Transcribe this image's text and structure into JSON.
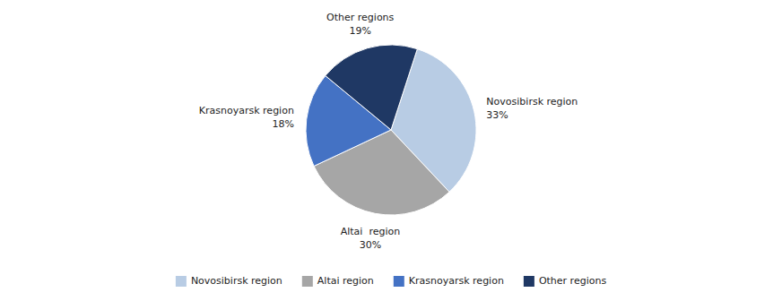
{
  "chart_data": {
    "type": "pie",
    "categories": [
      "Novosibirsk region",
      "Altai region",
      "Krasnoyarsk region",
      "Other regions"
    ],
    "values": [
      33,
      30,
      18,
      19
    ],
    "colors": [
      "#b8cce4",
      "#a6a6a6",
      "#4472c4",
      "#1f3864"
    ],
    "annotations": [
      "Novosibirsk region",
      "Altai  region",
      "Krasnoyarsk region",
      "Other regions"
    ],
    "data_labels": true,
    "value_labels": [
      "33%",
      "30%",
      "18%",
      "19%"
    ],
    "legend": "bottom"
  }
}
